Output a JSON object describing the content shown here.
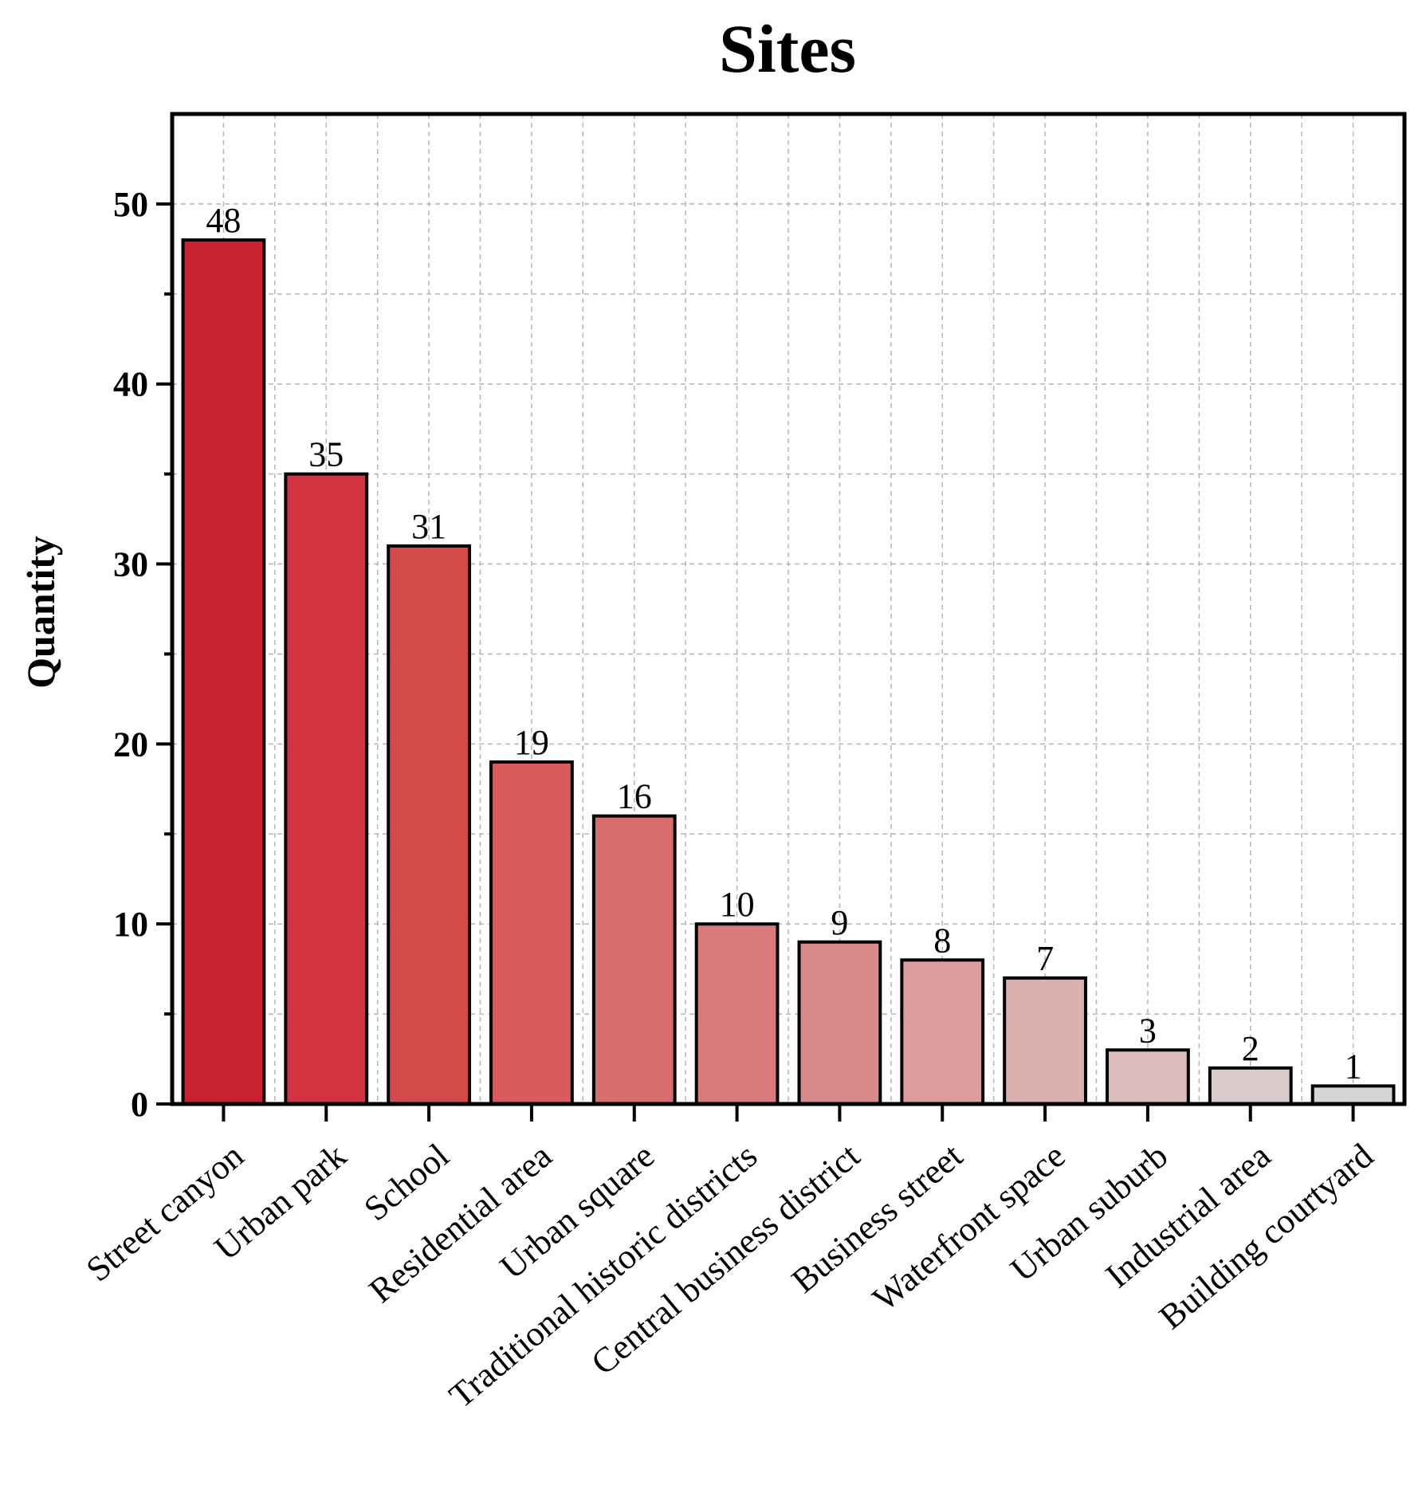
{
  "chart_data": {
    "type": "bar",
    "title": "Sites",
    "xlabel": "",
    "ylabel": "Quantity",
    "categories": [
      "Street canyon",
      "Urban park",
      "School",
      "Residential area",
      "Urban square",
      "Traditional historic districts",
      "Central business district",
      "Business street",
      "Waterfront space",
      "Urban suburb",
      "Industrial area",
      "Building courtyard"
    ],
    "values": [
      48,
      35,
      31,
      19,
      16,
      10,
      9,
      8,
      7,
      3,
      2,
      1
    ],
    "data_labels": [
      "48",
      "35",
      "31",
      "19",
      "16",
      "10",
      "9",
      "8",
      "7",
      "3",
      "2",
      "1"
    ],
    "ylim": [
      0,
      55
    ],
    "yticks": [
      0,
      10,
      20,
      30,
      40,
      50
    ],
    "ytick_labels": [
      "0",
      "10",
      "20",
      "30",
      "40",
      "50"
    ],
    "grid": true,
    "colors": [
      "#c8222e",
      "#d13440",
      "#d44a4a",
      "#d95b5d",
      "#d76d6d",
      "#db7a7b",
      "#d88a8a",
      "#de9d9d",
      "#dbaeaf",
      "#dcbcbc",
      "#d9cccb",
      "#d8d6d5"
    ]
  }
}
